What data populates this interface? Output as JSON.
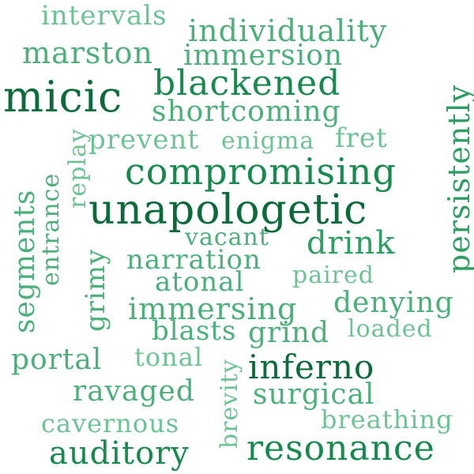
{
  "colors": {
    "background": "#ffffff",
    "darkest": "#0b6b3a",
    "dark": "#178a4e",
    "medium": "#2f9e62",
    "light": "#4bb07a",
    "lightest": "#6cc393"
  },
  "words": {
    "intervals": "intervals",
    "individuality": "individuality",
    "marston": "marston",
    "immersion": "immersion",
    "micic": "micic",
    "blackened": "blackened",
    "persistently": "persistently",
    "shortcoming": "shortcoming",
    "prevent": "prevent",
    "enigma": "enigma",
    "fret": "fret",
    "replay": "replay",
    "segments": "segments",
    "entrance": "entrance",
    "compromising": "compromising",
    "unapologetic": "unapologetic",
    "vacant": "vacant",
    "drink": "drink",
    "grimy": "grimy",
    "narration": "narration",
    "paired": "paired",
    "atonal": "atonal",
    "immersing": "immersing",
    "denying": "denying",
    "blasts": "blasts",
    "grind": "grind",
    "loaded": "loaded",
    "portal": "portal",
    "tonal": "tonal",
    "brevity": "brevity",
    "inferno": "inferno",
    "ravaged": "ravaged",
    "surgical": "surgical",
    "cavernous": "cavernous",
    "breathing": "breathing",
    "auditory": "auditory",
    "resonance": "resonance"
  }
}
